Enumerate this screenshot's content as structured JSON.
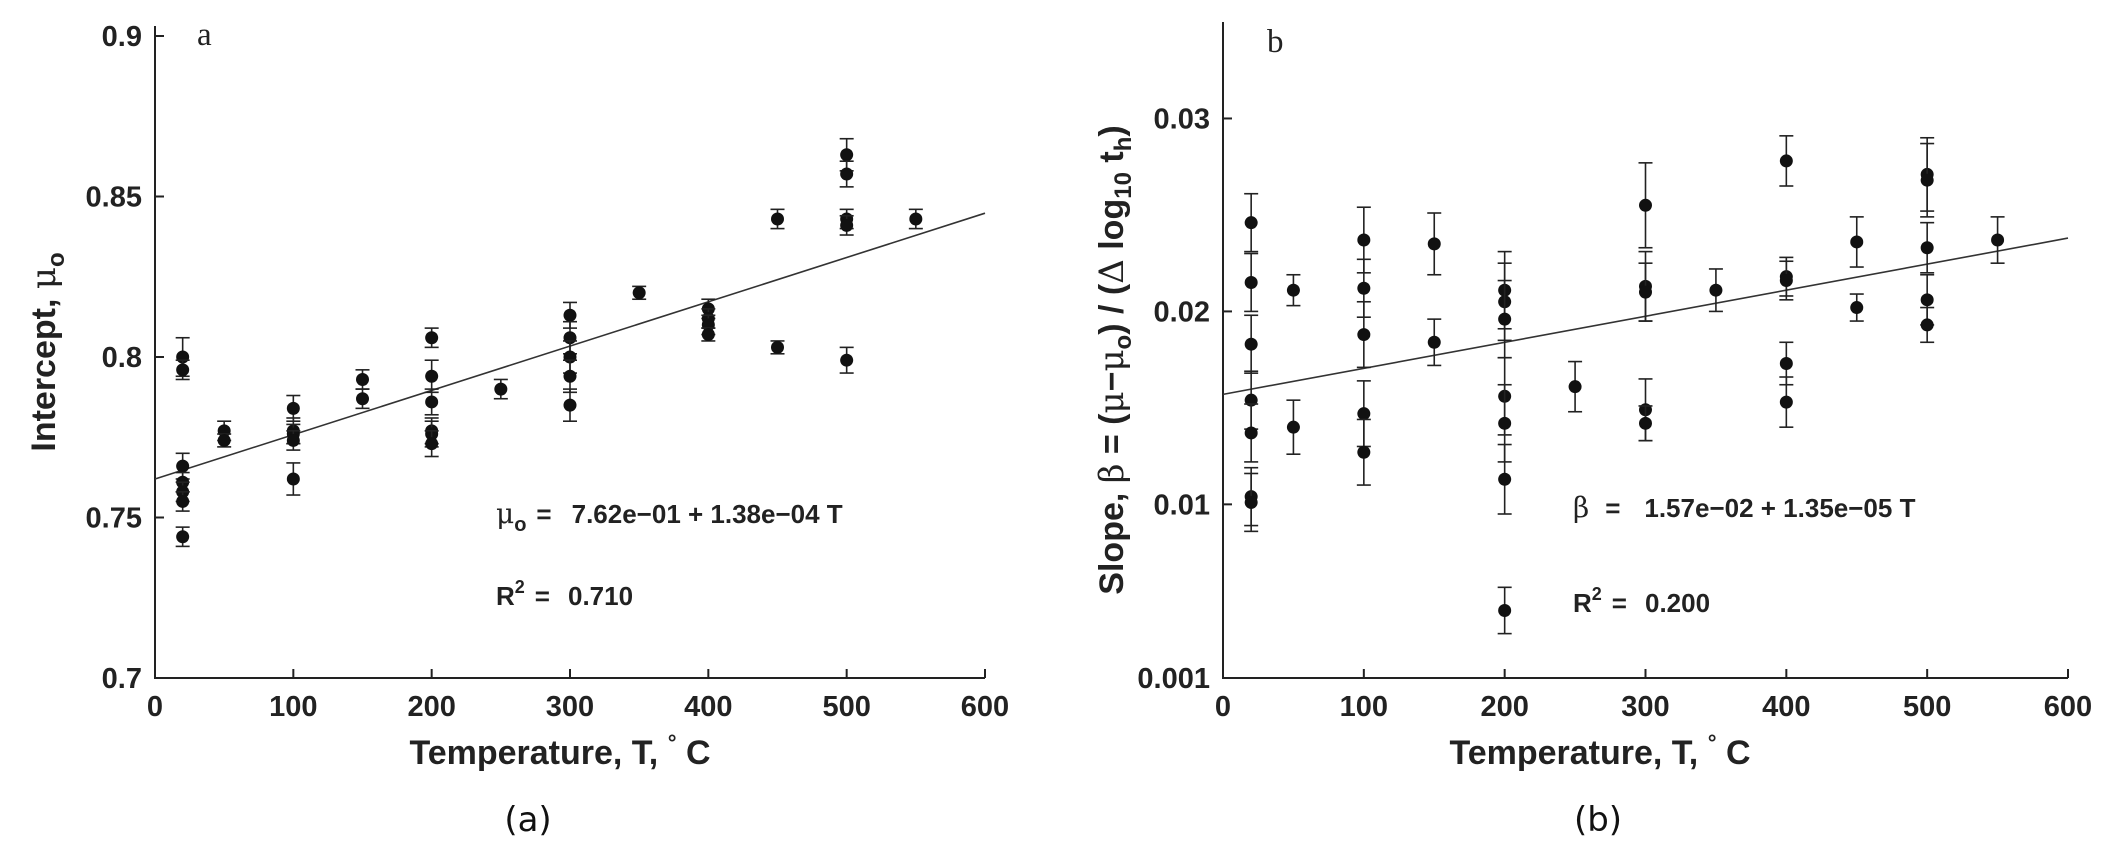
{
  "chart_data": [
    {
      "type": "scatter",
      "panel_label": "a",
      "caption": "(a)",
      "xlabel": "Temperature, T, ° C",
      "ylabel": "Intercept, μo",
      "xlim": [
        0,
        600
      ],
      "ylim": [
        0.7,
        0.9
      ],
      "xticks": [
        "0",
        "100",
        "200",
        "300",
        "400",
        "500",
        "600"
      ],
      "yticks": [
        "0.7",
        "0.75",
        "0.8",
        "0.85",
        "0.9"
      ],
      "ytick_values": [
        0.7,
        0.75,
        0.8,
        0.85,
        0.9
      ],
      "equation": {
        "lhs": "μo",
        "eq": "=",
        "rhs": "7.62e−01  +  1.38e−04  T"
      },
      "r2": {
        "label": "R2",
        "eq": "=",
        "value": "0.710"
      },
      "fit": {
        "intercept": 0.762,
        "slope": 0.000138
      },
      "points": [
        {
          "x": 20,
          "y": 0.8,
          "err": 0.006
        },
        {
          "x": 20,
          "y": 0.796,
          "err": 0.003
        },
        {
          "x": 20,
          "y": 0.766,
          "err": 0.004
        },
        {
          "x": 20,
          "y": 0.761,
          "err": 0.003
        },
        {
          "x": 20,
          "y": 0.758,
          "err": 0.003
        },
        {
          "x": 20,
          "y": 0.755,
          "err": 0.003
        },
        {
          "x": 20,
          "y": 0.744,
          "err": 0.003
        },
        {
          "x": 50,
          "y": 0.777,
          "err": 0.003
        },
        {
          "x": 50,
          "y": 0.774,
          "err": 0.002
        },
        {
          "x": 100,
          "y": 0.784,
          "err": 0.004
        },
        {
          "x": 100,
          "y": 0.777,
          "err": 0.004
        },
        {
          "x": 100,
          "y": 0.776,
          "err": 0.003
        },
        {
          "x": 100,
          "y": 0.774,
          "err": 0.003
        },
        {
          "x": 100,
          "y": 0.762,
          "err": 0.005
        },
        {
          "x": 150,
          "y": 0.793,
          "err": 0.003
        },
        {
          "x": 150,
          "y": 0.787,
          "err": 0.003
        },
        {
          "x": 200,
          "y": 0.806,
          "err": 0.003
        },
        {
          "x": 200,
          "y": 0.794,
          "err": 0.005
        },
        {
          "x": 200,
          "y": 0.786,
          "err": 0.004
        },
        {
          "x": 200,
          "y": 0.777,
          "err": 0.004
        },
        {
          "x": 200,
          "y": 0.776,
          "err": 0.004
        },
        {
          "x": 200,
          "y": 0.773,
          "err": 0.004
        },
        {
          "x": 250,
          "y": 0.79,
          "err": 0.003
        },
        {
          "x": 300,
          "y": 0.813,
          "err": 0.004
        },
        {
          "x": 300,
          "y": 0.806,
          "err": 0.005
        },
        {
          "x": 300,
          "y": 0.8,
          "err": 0.005
        },
        {
          "x": 300,
          "y": 0.794,
          "err": 0.005
        },
        {
          "x": 300,
          "y": 0.785,
          "err": 0.005
        },
        {
          "x": 350,
          "y": 0.82,
          "err": 0.002
        },
        {
          "x": 400,
          "y": 0.815,
          "err": 0.003
        },
        {
          "x": 400,
          "y": 0.812,
          "err": 0.003
        },
        {
          "x": 400,
          "y": 0.81,
          "err": 0.003
        },
        {
          "x": 400,
          "y": 0.807,
          "err": 0.002
        },
        {
          "x": 450,
          "y": 0.843,
          "err": 0.003
        },
        {
          "x": 450,
          "y": 0.803,
          "err": 0.002
        },
        {
          "x": 500,
          "y": 0.863,
          "err": 0.005
        },
        {
          "x": 500,
          "y": 0.857,
          "err": 0.004
        },
        {
          "x": 500,
          "y": 0.843,
          "err": 0.003
        },
        {
          "x": 500,
          "y": 0.841,
          "err": 0.003
        },
        {
          "x": 500,
          "y": 0.799,
          "err": 0.004
        },
        {
          "x": 550,
          "y": 0.843,
          "err": 0.003
        }
      ]
    },
    {
      "type": "scatter",
      "panel_label": "b",
      "caption": "(b)",
      "xlabel": "Temperature, T, ° C",
      "ylabel": "Slope, β = (μ−μo) / (Δ log10 th)",
      "xlim": [
        0,
        600
      ],
      "ylim": [
        0.001,
        0.035
      ],
      "xticks": [
        "0",
        "100",
        "200",
        "300",
        "400",
        "500",
        "600"
      ],
      "yticks": [
        "0.001",
        "0.01",
        "0.02",
        "0.03"
      ],
      "ytick_values": [
        0.001,
        0.01,
        0.02,
        0.03
      ],
      "equation": {
        "lhs": "β",
        "eq": "=",
        "rhs": "1.57e−02  +  1.35e−05  T"
      },
      "r2": {
        "label": "R2",
        "eq": "=",
        "value": "0.200"
      },
      "fit": {
        "intercept": 0.0157,
        "slope": 1.35e-05
      },
      "points": [
        {
          "x": 20,
          "y": 0.0246,
          "err": 0.0015
        },
        {
          "x": 20,
          "y": 0.0215,
          "err": 0.0015
        },
        {
          "x": 20,
          "y": 0.0183,
          "err": 0.0015
        },
        {
          "x": 20,
          "y": 0.0154,
          "err": 0.0015
        },
        {
          "x": 20,
          "y": 0.0137,
          "err": 0.0015
        },
        {
          "x": 20,
          "y": 0.0104,
          "err": 0.0015
        },
        {
          "x": 20,
          "y": 0.0101,
          "err": 0.0015
        },
        {
          "x": 50,
          "y": 0.0211,
          "err": 0.0008
        },
        {
          "x": 50,
          "y": 0.014,
          "err": 0.0014
        },
        {
          "x": 100,
          "y": 0.0237,
          "err": 0.0017
        },
        {
          "x": 100,
          "y": 0.0212,
          "err": 0.0015
        },
        {
          "x": 100,
          "y": 0.0188,
          "err": 0.0017
        },
        {
          "x": 100,
          "y": 0.0147,
          "err": 0.0017
        },
        {
          "x": 100,
          "y": 0.0127,
          "err": 0.0017
        },
        {
          "x": 150,
          "y": 0.0235,
          "err": 0.0016
        },
        {
          "x": 150,
          "y": 0.0184,
          "err": 0.0012
        },
        {
          "x": 200,
          "y": 0.0211,
          "err": 0.002
        },
        {
          "x": 200,
          "y": 0.0205,
          "err": 0.002
        },
        {
          "x": 200,
          "y": 0.0196,
          "err": 0.002
        },
        {
          "x": 200,
          "y": 0.0156,
          "err": 0.002
        },
        {
          "x": 200,
          "y": 0.0142,
          "err": 0.002
        },
        {
          "x": 200,
          "y": 0.0113,
          "err": 0.0018
        },
        {
          "x": 200,
          "y": 0.0045,
          "err": 0.0012
        },
        {
          "x": 250,
          "y": 0.0161,
          "err": 0.0013
        },
        {
          "x": 300,
          "y": 0.0255,
          "err": 0.0022
        },
        {
          "x": 300,
          "y": 0.0213,
          "err": 0.0018
        },
        {
          "x": 300,
          "y": 0.021,
          "err": 0.0015
        },
        {
          "x": 300,
          "y": 0.0149,
          "err": 0.0016
        },
        {
          "x": 300,
          "y": 0.0142,
          "err": 0.0009
        },
        {
          "x": 350,
          "y": 0.0211,
          "err": 0.0011
        },
        {
          "x": 400,
          "y": 0.0278,
          "err": 0.0013
        },
        {
          "x": 400,
          "y": 0.0218,
          "err": 0.001
        },
        {
          "x": 400,
          "y": 0.0216,
          "err": 0.001
        },
        {
          "x": 400,
          "y": 0.0173,
          "err": 0.0011
        },
        {
          "x": 400,
          "y": 0.0153,
          "err": 0.0013
        },
        {
          "x": 450,
          "y": 0.0236,
          "err": 0.0013
        },
        {
          "x": 450,
          "y": 0.0202,
          "err": 0.0007
        },
        {
          "x": 500,
          "y": 0.0271,
          "err": 0.0019
        },
        {
          "x": 500,
          "y": 0.0268,
          "err": 0.0019
        },
        {
          "x": 500,
          "y": 0.0233,
          "err": 0.0013
        },
        {
          "x": 500,
          "y": 0.0206,
          "err": 0.0013
        },
        {
          "x": 500,
          "y": 0.0193,
          "err": 0.0009
        },
        {
          "x": 550,
          "y": 0.0237,
          "err": 0.0012
        }
      ]
    }
  ]
}
